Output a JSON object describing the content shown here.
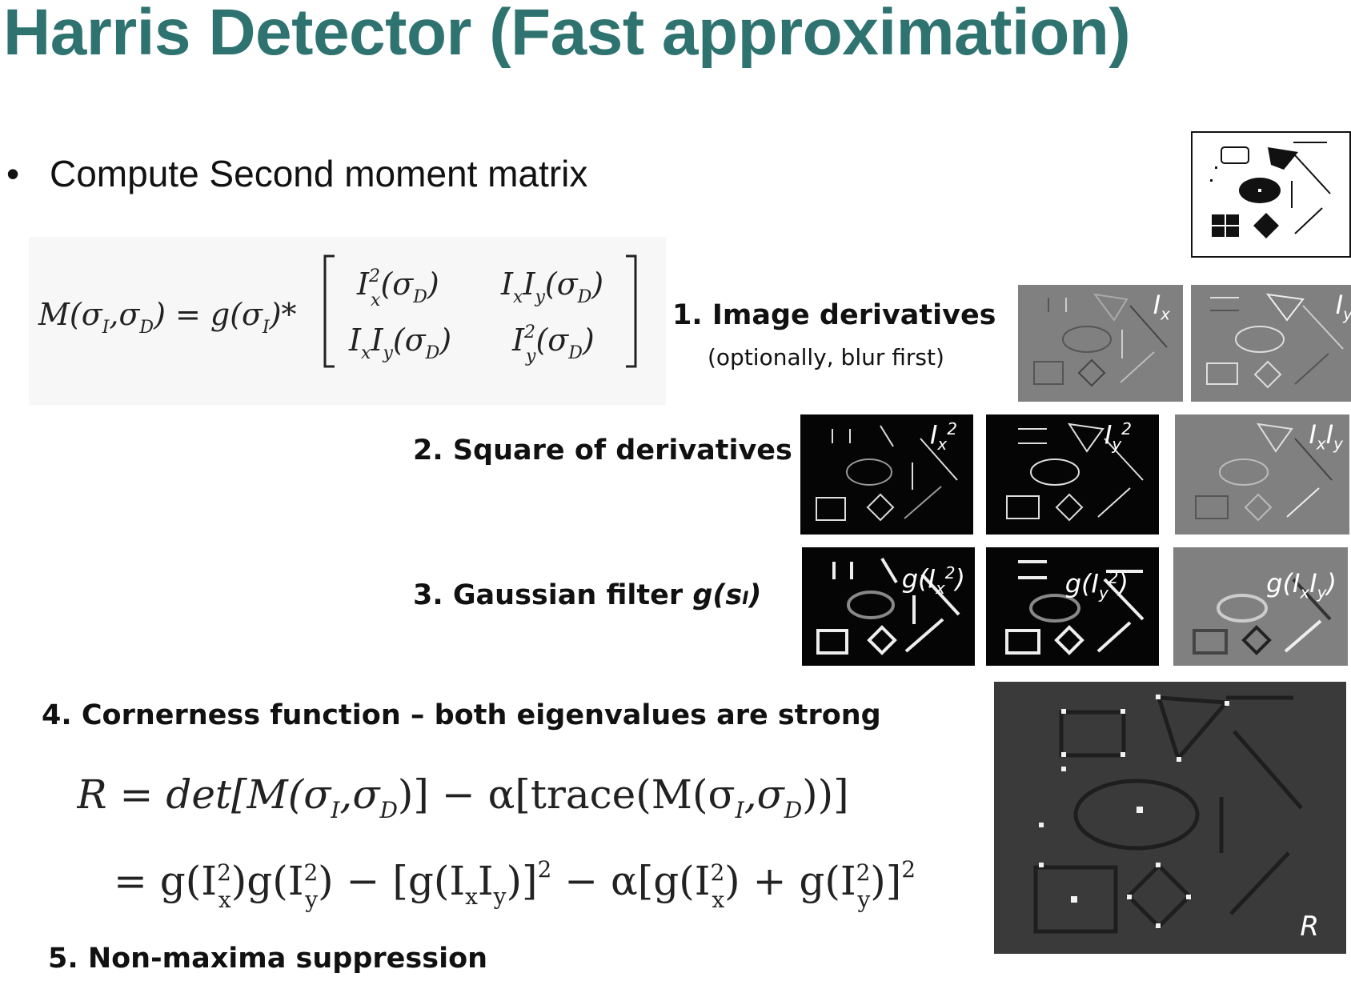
{
  "title": "Harris Detector (Fast approximation)",
  "bullet": "Compute Second moment matrix",
  "steps": {
    "s1": "1. Image derivatives",
    "s1_sub": "(optionally, blur first)",
    "s2": "2. Square of derivatives",
    "s3_prefix": "3. Gaussian filter ",
    "s3_g": "g(s",
    "s3_sub": "I",
    "s3_close": ")",
    "s4": "4. Cornerness function – both eigenvalues are strong",
    "s5": "5. Non-maxima suppression"
  },
  "formulas": {
    "moment": {
      "lhs": "M(σ",
      "lhs_i": "I",
      "lhs_mid": ",σ",
      "lhs_d": "D",
      "lhs_rhs": ") = g(σ",
      "lhs_rhs_i": "I",
      "lhs_end": ")*",
      "m11": "I",
      "m12": "I",
      "m21": "I",
      "m22": "I"
    },
    "r_line1": "R = det[M(σ",
    "r_line1_b": ",σ",
    "r_line1_c": ")] − α[trace(M(σ",
    "r_line1_d": ",σ",
    "r_line1_e": "))]",
    "r_line2": "= g(I",
    "r_line2_b": ")g(I",
    "r_line2_c": ") − [g(I",
    "r_line2_d": "I",
    "r_line2_e": ")]",
    "r_line2_f": " − α[g(I",
    "r_line2_g": ") + g(I",
    "r_line2_h": ")]"
  },
  "labels": {
    "ix": "I",
    "ix_sub": "x",
    "iy": "I",
    "iy_sub": "y",
    "ix2": "I",
    "ix2_sub": "x",
    "ix2_sup": "2",
    "iy2": "I",
    "iy2_sub": "y",
    "iy2_sup": "2",
    "ixiy": "I",
    "ixiy_sub1": "x",
    "ixiy_mid": "I",
    "ixiy_sub2": "y",
    "gix2": "g(I",
    "gix2_sub": "x",
    "gix2_sup": "2",
    "gix2_end": ")",
    "giy2": "g(I",
    "giy2_sub": "y",
    "giy2_sup": "2",
    "giy2_end": ")",
    "gixiy": "g(I",
    "gixiy_sub1": "x",
    "gixiy_mid": "I",
    "gixiy_sub2": "y",
    "gixiy_end": ")",
    "r": "R"
  },
  "colors": {
    "title": "#2e7370",
    "gray_panel": "#808080",
    "dark_panel": "#050505",
    "r_panel": "#3a3a3a"
  }
}
